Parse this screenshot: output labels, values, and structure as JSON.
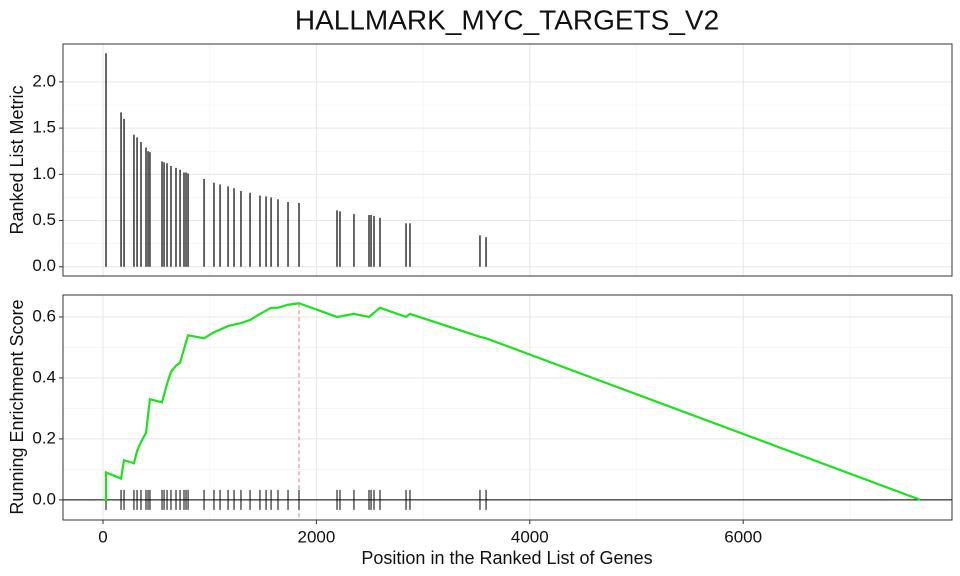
{
  "chart_data": [
    {
      "type": "bar",
      "title": "HALLMARK_MYC_TARGETS_V2",
      "y_label": "Ranked List Metric",
      "x": [
        28,
        169,
        197,
        290,
        319,
        356,
        403,
        422,
        440,
        553,
        572,
        600,
        637,
        684,
        722,
        759,
        778,
        797,
        947,
        1040,
        1097,
        1172,
        1228,
        1293,
        1378,
        1471,
        1528,
        1575,
        1640,
        1734,
        1837,
        2193,
        2221,
        2352,
        2493,
        2512,
        2540,
        2596,
        2840,
        2877,
        3533,
        3590
      ],
      "values": [
        2.31,
        1.67,
        1.6,
        1.43,
        1.4,
        1.35,
        1.29,
        1.25,
        1.24,
        1.14,
        1.13,
        1.12,
        1.09,
        1.07,
        1.05,
        1.02,
        1.02,
        1.01,
        0.95,
        0.91,
        0.89,
        0.87,
        0.85,
        0.82,
        0.8,
        0.77,
        0.76,
        0.75,
        0.73,
        0.7,
        0.69,
        0.61,
        0.6,
        0.57,
        0.56,
        0.56,
        0.55,
        0.53,
        0.47,
        0.47,
        0.34,
        0.32
      ],
      "color": "#000000",
      "grid": true,
      "xlim": [
        -375,
        7957
      ],
      "xticks": [
        0,
        2000,
        4000,
        6000,
        8000
      ],
      "ylim": [
        -0.1,
        2.41
      ],
      "yticks": [
        {
          "value": 0,
          "label": "0.0"
        },
        {
          "value": 0.5,
          "label": "0.5"
        },
        {
          "value": 1,
          "label": "1.0"
        },
        {
          "value": 1.5,
          "label": "1.5"
        },
        {
          "value": 2,
          "label": "2.0"
        }
      ]
    },
    {
      "type": "line",
      "x_label": "Position in the Ranked List of Genes",
      "y_label": "Running Enrichment Score",
      "x": [
        0,
        28,
        28,
        169,
        197,
        290,
        319,
        356,
        403,
        440,
        553,
        600,
        637,
        684,
        722,
        797,
        947,
        1040,
        1172,
        1293,
        1378,
        1471,
        1575,
        1640,
        1734,
        1837,
        2193,
        2352,
        2493,
        2596,
        2840,
        2877,
        3533,
        3590,
        7660
      ],
      "values": [
        0,
        0,
        0.09,
        0.07,
        0.13,
        0.12,
        0.16,
        0.19,
        0.22,
        0.33,
        0.32,
        0.38,
        0.42,
        0.44,
        0.45,
        0.54,
        0.53,
        0.55,
        0.57,
        0.58,
        0.59,
        0.61,
        0.63,
        0.63,
        0.64,
        0.645,
        0.6,
        0.61,
        0.6,
        0.63,
        0.6,
        0.61,
        0.535,
        0.53,
        0
      ],
      "color": "#1fe01f",
      "grid": true,
      "xlim": [
        -375,
        7957
      ],
      "xticks": [
        0,
        2000,
        4000,
        6000,
        8000
      ],
      "ylim": [
        -0.066,
        0.672
      ],
      "yticks": [
        {
          "value": 0,
          "label": "0.0"
        },
        {
          "value": 0.2,
          "label": "0.2"
        },
        {
          "value": 0.4,
          "label": "0.4"
        },
        {
          "value": 0.6,
          "label": "0.6"
        }
      ]
    }
  ]
}
